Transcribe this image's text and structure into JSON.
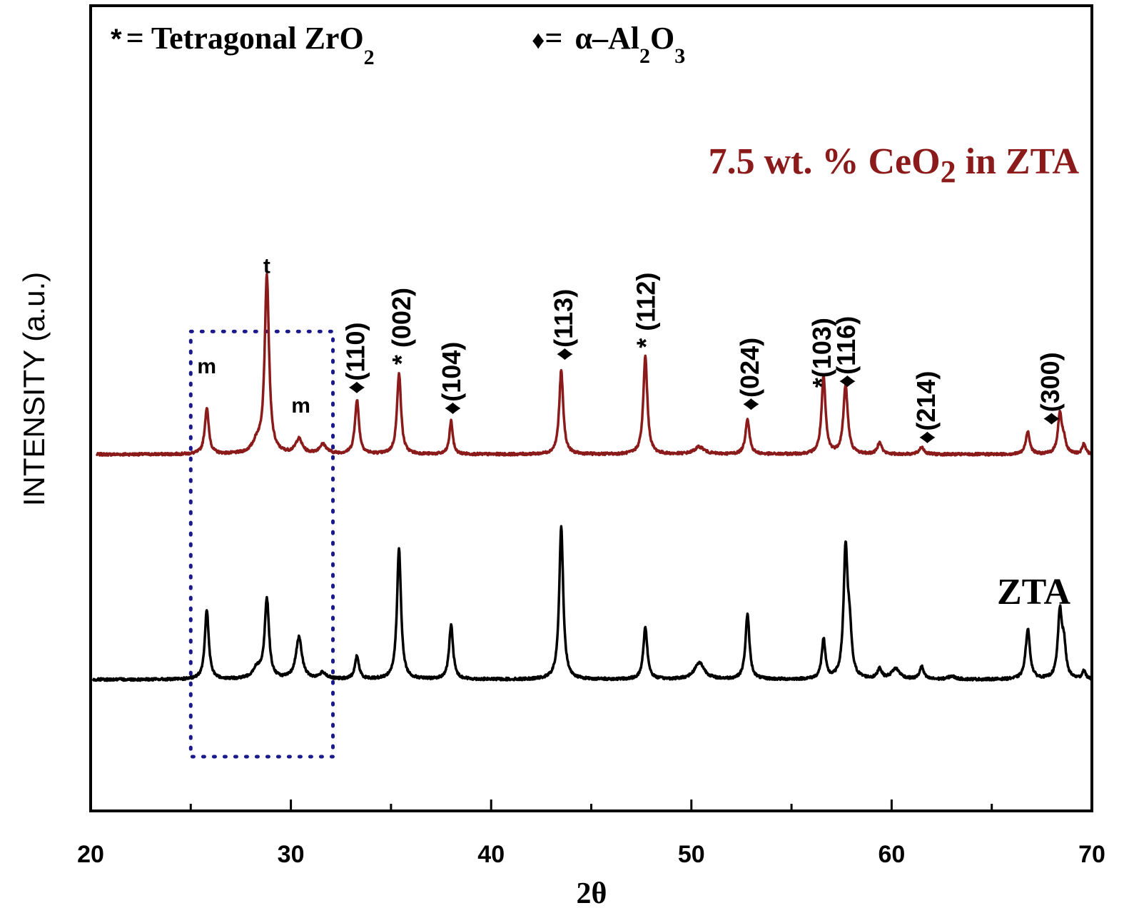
{
  "chart_data": {
    "type": "line",
    "xlabel": "2θ",
    "ylabel": "INTENSITY (a.u.)",
    "xlim": [
      20,
      70
    ],
    "xticks": [
      "20",
      "30",
      "40",
      "50",
      "60",
      "70"
    ],
    "grid": false,
    "legend": {
      "tetragonal_symbol": "*",
      "tetragonal_text": "= Tetragonal ZrO",
      "tetragonal_sub": "2",
      "alumina_symbol": "♦",
      "alumina_eq": "= ",
      "alumina_alpha": "α–Al",
      "alumina_sub1": "2",
      "alumina_O": "O",
      "alumina_sub2": "3"
    },
    "series": [
      {
        "name": "7.5 wt. % CeO2 in ZTA",
        "label_main": "7.5 wt. % CeO",
        "label_sub": "2",
        "label_tail": " in ZTA",
        "color": "#8b1a1a",
        "baseline": 0.8,
        "peaks": [
          {
            "x": 25.8,
            "h": 2.2,
            "w": 0.12
          },
          {
            "x": 28.3,
            "h": 0.5,
            "w": 0.25
          },
          {
            "x": 28.8,
            "h": 8.5,
            "w": 0.13
          },
          {
            "x": 30.4,
            "h": 0.7,
            "w": 0.2
          },
          {
            "x": 31.6,
            "h": 0.45,
            "w": 0.22
          },
          {
            "x": 33.3,
            "h": 2.6,
            "w": 0.12
          },
          {
            "x": 35.4,
            "h": 3.9,
            "w": 0.12
          },
          {
            "x": 38.0,
            "h": 1.6,
            "w": 0.1
          },
          {
            "x": 43.5,
            "h": 4.0,
            "w": 0.12
          },
          {
            "x": 47.7,
            "h": 4.7,
            "w": 0.12
          },
          {
            "x": 50.4,
            "h": 0.35,
            "w": 0.3
          },
          {
            "x": 52.8,
            "h": 1.7,
            "w": 0.12
          },
          {
            "x": 56.6,
            "h": 3.7,
            "w": 0.12
          },
          {
            "x": 57.7,
            "h": 3.3,
            "w": 0.13
          },
          {
            "x": 59.4,
            "h": 0.6,
            "w": 0.12
          },
          {
            "x": 61.5,
            "h": 0.35,
            "w": 0.14
          },
          {
            "x": 66.8,
            "h": 1.1,
            "w": 0.12
          },
          {
            "x": 68.4,
            "h": 1.9,
            "w": 0.12
          },
          {
            "x": 68.6,
            "h": 0.6,
            "w": 0.12
          },
          {
            "x": 69.6,
            "h": 0.5,
            "w": 0.1
          }
        ]
      },
      {
        "name": "ZTA",
        "label_main": "ZTA",
        "label_sub": "",
        "label_tail": "",
        "color": "#000000",
        "baseline": -10.0,
        "peaks": [
          {
            "x": 25.8,
            "h": 3.3,
            "w": 0.12
          },
          {
            "x": 28.3,
            "h": 0.5,
            "w": 0.25
          },
          {
            "x": 28.8,
            "h": 3.8,
            "w": 0.13
          },
          {
            "x": 30.4,
            "h": 2.0,
            "w": 0.18
          },
          {
            "x": 31.6,
            "h": 0.3,
            "w": 0.2
          },
          {
            "x": 33.3,
            "h": 1.1,
            "w": 0.12
          },
          {
            "x": 35.4,
            "h": 6.3,
            "w": 0.12
          },
          {
            "x": 38.0,
            "h": 2.6,
            "w": 0.12
          },
          {
            "x": 43.5,
            "h": 7.3,
            "w": 0.12
          },
          {
            "x": 47.7,
            "h": 2.5,
            "w": 0.12
          },
          {
            "x": 50.4,
            "h": 0.8,
            "w": 0.3
          },
          {
            "x": 52.8,
            "h": 3.1,
            "w": 0.12
          },
          {
            "x": 56.6,
            "h": 1.9,
            "w": 0.11
          },
          {
            "x": 57.7,
            "h": 6.1,
            "w": 0.12
          },
          {
            "x": 57.9,
            "h": 2.0,
            "w": 0.12
          },
          {
            "x": 59.4,
            "h": 0.5,
            "w": 0.12
          },
          {
            "x": 60.2,
            "h": 0.5,
            "w": 0.25
          },
          {
            "x": 61.5,
            "h": 0.6,
            "w": 0.12
          },
          {
            "x": 63.0,
            "h": 0.15,
            "w": 0.2
          },
          {
            "x": 66.8,
            "h": 2.4,
            "w": 0.13
          },
          {
            "x": 68.4,
            "h": 3.1,
            "w": 0.12
          },
          {
            "x": 68.6,
            "h": 1.5,
            "w": 0.12
          },
          {
            "x": 69.6,
            "h": 0.4,
            "w": 0.1
          }
        ]
      }
    ],
    "peak_annotations": [
      {
        "text": "m",
        "x": 25.8,
        "y": 4.7,
        "kind": "phase"
      },
      {
        "text": "t",
        "x": 28.8,
        "y": 9.5,
        "kind": "phase"
      },
      {
        "text": "m",
        "x": 30.5,
        "y": 2.8,
        "kind": "phase"
      },
      {
        "text": "♦(110)",
        "x": 33.2,
        "y": 3.7,
        "kind": "hkl"
      },
      {
        "text": "* (002)",
        "x": 35.5,
        "y": 5.1,
        "kind": "hkl"
      },
      {
        "text": "♦(104)",
        "x": 38.0,
        "y": 2.7,
        "kind": "hkl"
      },
      {
        "text": "♦(113)",
        "x": 43.6,
        "y": 5.3,
        "kind": "hkl"
      },
      {
        "text": "* (112)",
        "x": 47.7,
        "y": 5.9,
        "kind": "hkl"
      },
      {
        "text": "♦(024)",
        "x": 52.9,
        "y": 2.9,
        "kind": "hkl"
      },
      {
        "text": "*(103)",
        "x": 56.5,
        "y": 4.0,
        "kind": "hkl"
      },
      {
        "text": "♦(116)",
        "x": 57.7,
        "y": 4.0,
        "kind": "hkl"
      },
      {
        "text": "♦(214)",
        "x": 61.7,
        "y": 1.3,
        "kind": "hkl"
      },
      {
        "text": "♦(300)",
        "x": 67.9,
        "y": 2.2,
        "kind": "hkl"
      }
    ],
    "highlight_box": {
      "x": [
        25.0,
        32.1
      ],
      "y": [
        -13.7,
        6.7
      ],
      "color": "#1a1a8c",
      "style": "dotted"
    }
  }
}
